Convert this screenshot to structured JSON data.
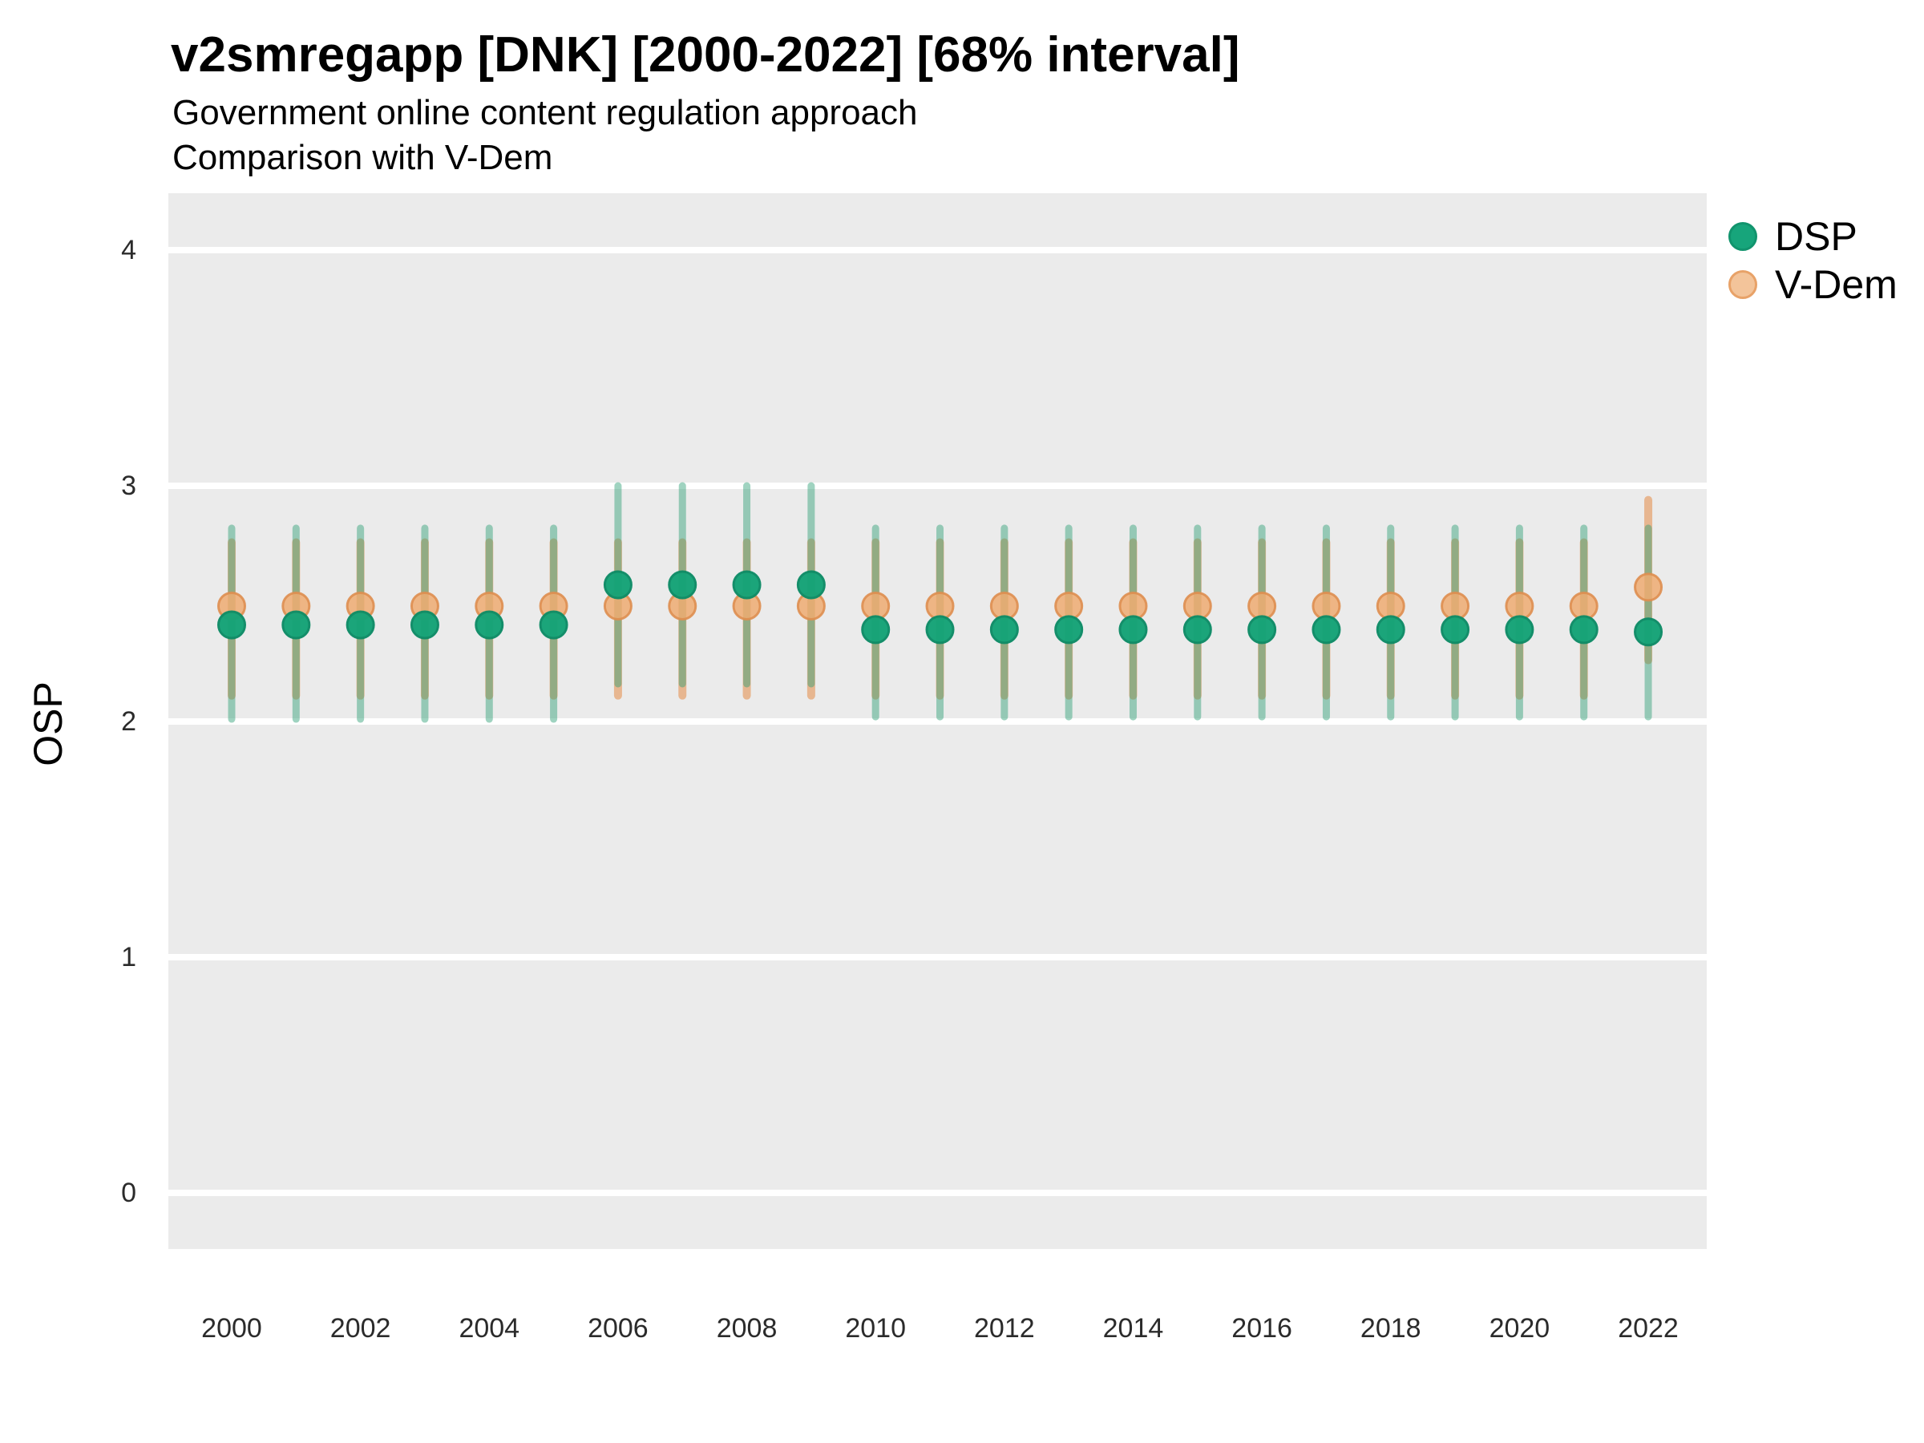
{
  "header": {
    "title": "v2smregapp [DNK] [2000-2022] [68% interval]",
    "subtitle_line1": "Government online content regulation approach",
    "subtitle_line2": "Comparison with V-Dem"
  },
  "y_axis": {
    "label": "OSP",
    "ticks": [
      0,
      1,
      2,
      3,
      4
    ]
  },
  "x_axis": {
    "ticks": [
      2000,
      2002,
      2004,
      2006,
      2008,
      2010,
      2012,
      2014,
      2016,
      2018,
      2020,
      2022
    ]
  },
  "legend": {
    "items": [
      {
        "label": "DSP",
        "fill": "#17A57B",
        "stroke": "#11946D"
      },
      {
        "label": "V-Dem",
        "fill": "#F3C49A",
        "stroke": "#E8A268"
      }
    ]
  },
  "colors": {
    "panel_background": "#EBEBEB",
    "gridline": "#FFFFFF",
    "dsp_point_fill": "#15A377",
    "dsp_point_stroke": "#0E8C66",
    "dsp_interval": "rgba(42,157,116,0.45)",
    "vdem_point_fill": "#EFAC72",
    "vdem_point_stroke": "#DE8E50",
    "vdem_interval": "#E7B690"
  },
  "chart_data": {
    "type": "scatter",
    "title": "v2smregapp [DNK] [2000-2022] [68% interval]",
    "subtitle": [
      "Government online content regulation approach",
      "Comparison with V-Dem"
    ],
    "xlabel": "",
    "ylabel": "OSP",
    "ylim": [
      -0.24,
      4.24
    ],
    "y_ticks": [
      0,
      1,
      2,
      3,
      4
    ],
    "x_tick_years": [
      2000,
      2002,
      2004,
      2006,
      2008,
      2010,
      2012,
      2014,
      2016,
      2018,
      2020,
      2022
    ],
    "grid": "horizontal-major-only",
    "legend_position": "right-top-outside",
    "interval_label": "68% interval",
    "x": [
      2000,
      2001,
      2002,
      2003,
      2004,
      2005,
      2006,
      2007,
      2008,
      2009,
      2010,
      2011,
      2012,
      2013,
      2014,
      2015,
      2016,
      2017,
      2018,
      2019,
      2020,
      2021,
      2022
    ],
    "series": [
      {
        "name": "DSP",
        "values": [
          2.41,
          2.41,
          2.41,
          2.41,
          2.41,
          2.41,
          2.58,
          2.58,
          2.58,
          2.58,
          2.39,
          2.39,
          2.39,
          2.39,
          2.39,
          2.39,
          2.39,
          2.39,
          2.39,
          2.39,
          2.39,
          2.39,
          2.38
        ],
        "lo": [
          2.01,
          2.01,
          2.01,
          2.01,
          2.01,
          2.01,
          2.16,
          2.16,
          2.16,
          2.16,
          2.02,
          2.02,
          2.02,
          2.02,
          2.02,
          2.02,
          2.02,
          2.02,
          2.02,
          2.02,
          2.02,
          2.02,
          2.02
        ],
        "hi": [
          2.82,
          2.82,
          2.82,
          2.82,
          2.82,
          2.82,
          3.0,
          3.0,
          3.0,
          3.0,
          2.82,
          2.82,
          2.82,
          2.82,
          2.82,
          2.82,
          2.82,
          2.82,
          2.82,
          2.82,
          2.82,
          2.82,
          2.82
        ]
      },
      {
        "name": "V-Dem",
        "values": [
          2.49,
          2.49,
          2.49,
          2.49,
          2.49,
          2.49,
          2.49,
          2.49,
          2.49,
          2.49,
          2.49,
          2.49,
          2.49,
          2.49,
          2.49,
          2.49,
          2.49,
          2.49,
          2.49,
          2.49,
          2.49,
          2.49,
          2.57
        ],
        "lo": [
          2.11,
          2.11,
          2.11,
          2.11,
          2.11,
          2.11,
          2.11,
          2.11,
          2.11,
          2.11,
          2.11,
          2.11,
          2.11,
          2.11,
          2.11,
          2.11,
          2.11,
          2.11,
          2.11,
          2.11,
          2.11,
          2.11,
          2.26
        ],
        "hi": [
          2.76,
          2.76,
          2.76,
          2.76,
          2.76,
          2.76,
          2.76,
          2.76,
          2.76,
          2.76,
          2.76,
          2.76,
          2.76,
          2.76,
          2.76,
          2.76,
          2.76,
          2.76,
          2.76,
          2.76,
          2.76,
          2.76,
          2.94
        ]
      }
    ]
  }
}
